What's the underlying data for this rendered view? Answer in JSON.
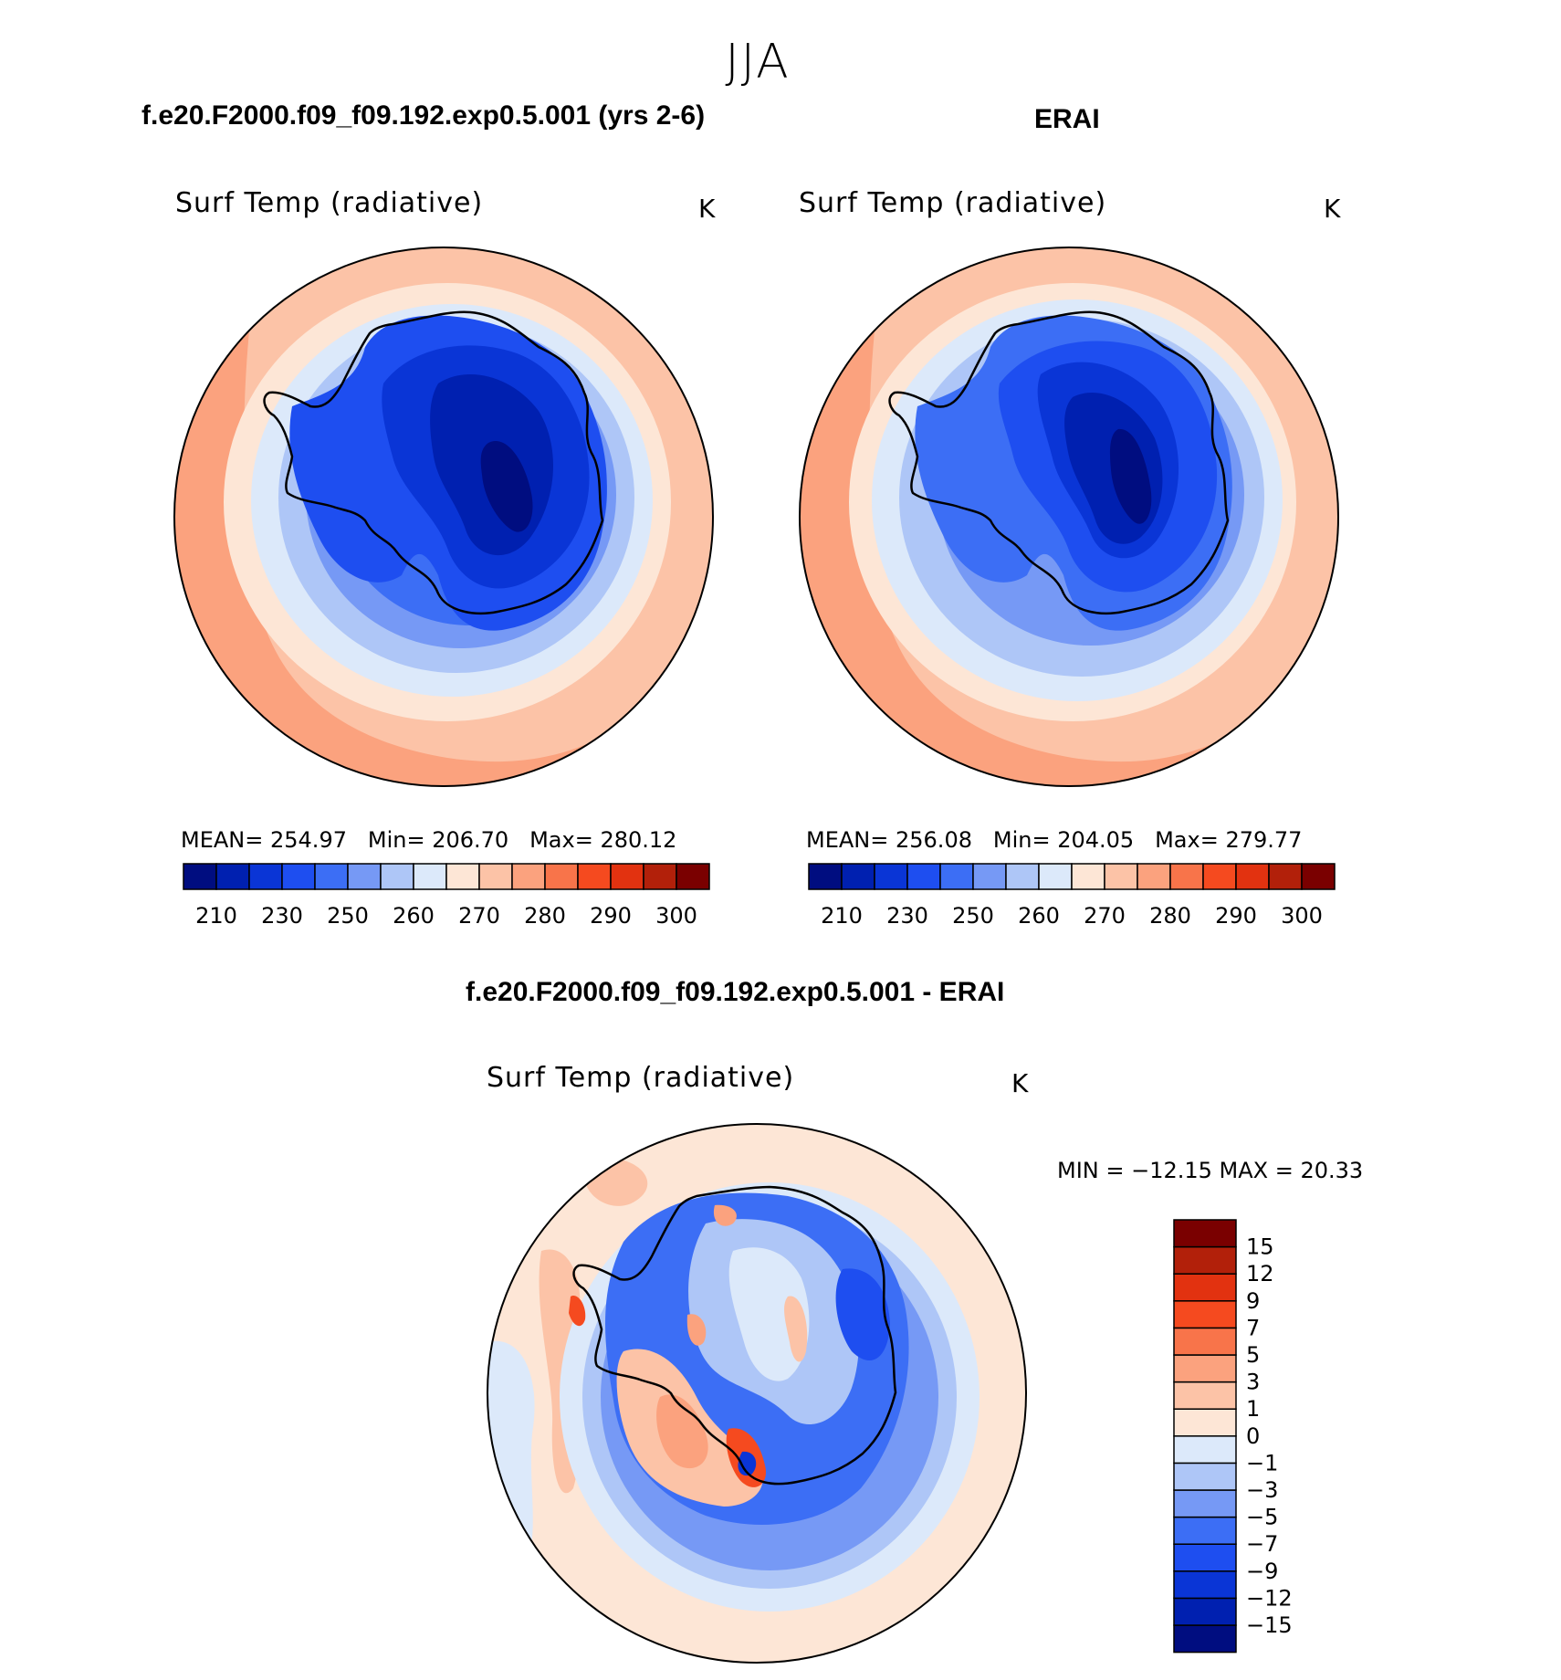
{
  "season": "JJA",
  "panels": [
    {
      "title": "f.e20.F2000.f09_f09.192.exp0.5.001 (yrs 2-6)",
      "variable": "Surf Temp (radiative)",
      "units": "K",
      "stats": {
        "mean_label": "MEAN=",
        "mean": "254.97",
        "min_label": "Min=",
        "min": "206.70",
        "max_label": "Max=",
        "max": "280.12"
      }
    },
    {
      "title": "ERAI",
      "variable": "Surf Temp (radiative)",
      "units": "K",
      "stats": {
        "mean_label": "MEAN=",
        "mean": "256.08",
        "min_label": "Min=",
        "min": "204.05",
        "max_label": "Max=",
        "max": "279.77"
      }
    }
  ],
  "colorbar_abs": {
    "colors": [
      "#000d80",
      "#0020b0",
      "#0a35d6",
      "#1e4ef0",
      "#3c6ef5",
      "#7699f5",
      "#aec6f7",
      "#dce9fa",
      "#fde6d6",
      "#fcc3a7",
      "#fba27e",
      "#f8744a",
      "#f54a1f",
      "#e23210",
      "#b2200a",
      "#7a0000"
    ],
    "ticks": [
      "210",
      "230",
      "250",
      "260",
      "270",
      "280",
      "290",
      "300"
    ]
  },
  "diff_panel": {
    "title": "f.e20.F2000.f09_f09.192.exp0.5.001 - ERAI",
    "variable": "Surf Temp (radiative)",
    "units": "K",
    "minmax": "MIN = −12.15 MAX =   20.33"
  },
  "colorbar_diff": {
    "colors": [
      "#000d80",
      "#0020b0",
      "#0a35d6",
      "#1e4ef0",
      "#3c6ef5",
      "#7699f5",
      "#aec6f7",
      "#dce9fa",
      "#fde6d6",
      "#fcc3a7",
      "#fba27e",
      "#f8744a",
      "#f54a1f",
      "#e23210",
      "#b2200a",
      "#7a0000"
    ],
    "ticks": [
      "15",
      "12",
      "9",
      "7",
      "5",
      "3",
      "1",
      "0",
      "−1",
      "−3",
      "−5",
      "−7",
      "−9",
      "−12",
      "−15"
    ]
  }
}
